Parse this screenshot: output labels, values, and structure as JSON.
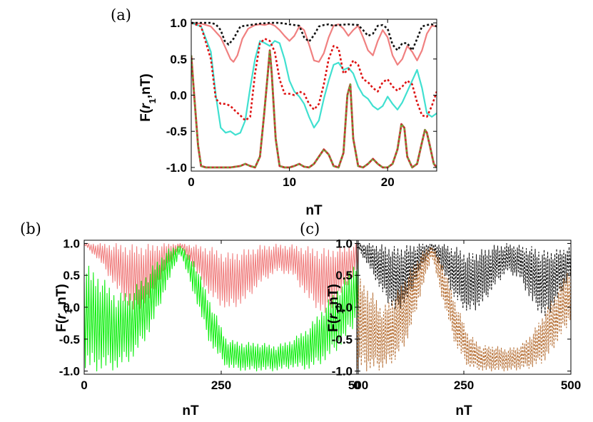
{
  "chart_data": [
    {
      "panel": "(a)",
      "type": "line",
      "xlabel": "nT",
      "ylabel_text": "F(",
      "ylabel_var": "r",
      "ylabel_sub": "1",
      "ylabel_rest": ",nT)",
      "xlim": [
        0,
        25
      ],
      "ylim": [
        -1.05,
        1.05
      ],
      "xticks": [
        0,
        10,
        20
      ],
      "yticks": [
        1.0,
        0.5,
        0.0,
        -0.5,
        -1.0
      ],
      "ytick_labels": [
        "1.0",
        "0.5",
        "0.0",
        "-0.5",
        "-1.0"
      ],
      "xtick_labels": [
        "0",
        "10",
        "20"
      ],
      "series": [
        {
          "color": "#f08080",
          "dash": "",
          "width": 2.2,
          "x": [
            0,
            1,
            2,
            3,
            3.5,
            4,
            4.3,
            4.7,
            5.2,
            5.8,
            6.5,
            7,
            7.5,
            8,
            8.5,
            9,
            9.5,
            10,
            10.5,
            11,
            11.5,
            12,
            12.5,
            13,
            13.5,
            14,
            14.5,
            15,
            15.5,
            16,
            16.5,
            17,
            17.5,
            18,
            18.5,
            19,
            19.5,
            20,
            20.5,
            21,
            21.5,
            22,
            22.5,
            23,
            23.5,
            24,
            24.5,
            25
          ],
          "y": [
            1.0,
            0.99,
            0.95,
            0.8,
            0.65,
            0.5,
            0.46,
            0.55,
            0.78,
            0.92,
            0.97,
            0.98,
            0.97,
            0.99,
            0.96,
            0.9,
            0.82,
            0.75,
            0.82,
            0.95,
            0.9,
            0.7,
            0.48,
            0.46,
            0.58,
            0.8,
            0.96,
            0.98,
            0.92,
            0.82,
            0.9,
            0.96,
            0.8,
            0.62,
            0.55,
            0.75,
            0.9,
            0.8,
            0.55,
            0.42,
            0.5,
            0.68,
            0.6,
            0.48,
            0.62,
            0.85,
            0.96,
            0.95
          ]
        },
        {
          "color": "#40e0d0",
          "dash": "",
          "width": 2.2,
          "x": [
            0,
            1,
            2,
            2.5,
            3,
            3.5,
            4,
            4.5,
            5,
            5.5,
            6,
            6.5,
            7,
            7.5,
            8,
            8.5,
            9,
            9.5,
            10,
            10.5,
            11,
            11.5,
            12,
            12.5,
            13,
            13.5,
            14,
            14.5,
            15,
            15.5,
            16,
            16.5,
            17,
            17.5,
            18,
            18.5,
            19,
            19.5,
            20,
            20.5,
            21,
            21.5,
            22,
            22.5,
            23,
            23.5,
            24,
            24.5,
            25
          ],
          "y": [
            1.0,
            0.95,
            0.6,
            0.0,
            -0.45,
            -0.52,
            -0.5,
            -0.55,
            -0.52,
            -0.35,
            0.1,
            0.5,
            0.75,
            0.72,
            0.68,
            0.75,
            0.72,
            0.5,
            0.2,
            0.05,
            -0.02,
            -0.12,
            -0.3,
            -0.45,
            -0.35,
            -0.05,
            0.2,
            0.42,
            0.45,
            0.35,
            0.38,
            0.3,
            0.12,
            0.0,
            -0.05,
            -0.15,
            -0.2,
            -0.15,
            -0.02,
            -0.12,
            -0.2,
            -0.1,
            0.05,
            0.2,
            0.35,
            0.1,
            -0.25,
            -0.3,
            -0.25
          ]
        },
        {
          "color": "#dd1111",
          "dash": "3,3",
          "width": 2.6,
          "x": [
            0,
            1,
            2,
            2.5,
            3,
            3.5,
            4,
            4.5,
            5,
            5.5,
            6,
            6.5,
            7,
            7.5,
            8,
            8.5,
            9,
            9.5,
            10,
            10.5,
            11,
            11.5,
            12,
            12.5,
            13,
            13.5,
            14,
            14.5,
            15,
            15.5,
            16,
            16.5,
            17,
            17.5,
            18,
            18.5,
            19,
            19.5,
            20,
            20.5,
            21,
            21.5,
            22,
            22.5,
            23,
            23.5,
            24,
            24.5,
            25
          ],
          "y": [
            1.0,
            0.95,
            0.5,
            -0.05,
            -0.12,
            -0.12,
            -0.15,
            -0.22,
            -0.28,
            -0.35,
            -0.3,
            0.3,
            0.72,
            0.78,
            0.75,
            0.6,
            0.22,
            0.02,
            0.02,
            0.0,
            0.05,
            0.02,
            -0.12,
            -0.2,
            -0.12,
            0.15,
            0.5,
            0.68,
            0.65,
            0.3,
            0.35,
            0.48,
            0.42,
            0.22,
            0.18,
            0.1,
            0.05,
            0.18,
            0.22,
            0.12,
            0.06,
            0.12,
            0.2,
            0.15,
            -0.1,
            -0.28,
            -0.3,
            -0.15,
            0.05
          ]
        },
        {
          "color": "#111111",
          "dash": "3,3",
          "width": 2.6,
          "x": [
            0,
            1,
            2,
            2.5,
            3,
            3.4,
            3.8,
            4.3,
            5,
            6,
            7,
            8,
            9,
            10,
            11,
            11.5,
            12,
            12.5,
            13,
            13.5,
            14,
            14.5,
            15,
            16,
            17,
            17.5,
            18,
            18.5,
            19,
            19.5,
            20,
            20.5,
            21,
            21.5,
            22,
            22.5,
            23,
            23.5,
            24,
            24.5,
            25
          ],
          "y": [
            1.0,
            1.0,
            1.0,
            0.98,
            0.9,
            0.75,
            0.7,
            0.78,
            0.95,
            0.97,
            0.99,
            1.0,
            1.0,
            0.98,
            0.96,
            0.8,
            0.74,
            0.83,
            0.95,
            0.97,
            0.98,
            0.96,
            0.97,
            0.98,
            0.97,
            0.9,
            0.82,
            0.85,
            0.96,
            0.97,
            0.92,
            0.7,
            0.62,
            0.72,
            0.72,
            0.62,
            0.78,
            0.95,
            0.97,
            0.98,
            0.95
          ]
        },
        {
          "color": "#c63030",
          "dash": "",
          "width": 2.8,
          "x": [
            0,
            0.3,
            0.7,
            1,
            1.5,
            2,
            3,
            4,
            5,
            5.5,
            6,
            6.5,
            7,
            7.4,
            7.8,
            8,
            8.2,
            8.6,
            9,
            9.5,
            10,
            10.5,
            11,
            11.5,
            12,
            12.5,
            13,
            13.5,
            14,
            14.5,
            15,
            15.5,
            15.9,
            16.2,
            16.5,
            17,
            17.5,
            18,
            18.5,
            19,
            19.5,
            20,
            20.5,
            21,
            21.4,
            21.7,
            22,
            22.5,
            23,
            23.5,
            23.8,
            24,
            24.3,
            24.7,
            25
          ],
          "y": [
            0.55,
            0.0,
            -0.7,
            -0.98,
            -1.0,
            -1.0,
            -1.0,
            -1.0,
            -0.98,
            -0.95,
            -0.98,
            -1.0,
            -0.85,
            -0.3,
            0.3,
            0.62,
            0.3,
            -0.6,
            -0.98,
            -1.0,
            -1.0,
            -0.98,
            -0.95,
            -0.99,
            -1.0,
            -0.95,
            -0.85,
            -0.75,
            -0.82,
            -0.98,
            -1.0,
            -0.8,
            0.0,
            0.15,
            -0.6,
            -0.98,
            -1.0,
            -0.95,
            -0.88,
            -0.95,
            -1.0,
            -1.0,
            -0.95,
            -0.75,
            -0.4,
            -0.45,
            -0.85,
            -1.0,
            -0.95,
            -0.65,
            -0.48,
            -0.52,
            -0.7,
            -0.95,
            -1.0
          ]
        },
        {
          "color": "#6ea83a",
          "dash": "3,3",
          "width": 2.4,
          "x": [
            0,
            0.3,
            0.7,
            1,
            1.5,
            2,
            3,
            4,
            5,
            5.5,
            6,
            6.5,
            7,
            7.4,
            7.8,
            8,
            8.2,
            8.6,
            9,
            9.5,
            10,
            10.5,
            11,
            11.5,
            12,
            12.5,
            13,
            13.5,
            14,
            14.5,
            15,
            15.5,
            15.9,
            16.2,
            16.5,
            17,
            17.5,
            18,
            18.5,
            19,
            19.5,
            20,
            20.5,
            21,
            21.4,
            21.7,
            22,
            22.5,
            23,
            23.5,
            23.8,
            24,
            24.3,
            24.7,
            25
          ],
          "y": [
            0.55,
            0.0,
            -0.7,
            -0.98,
            -1.0,
            -1.0,
            -1.0,
            -1.0,
            -0.98,
            -0.95,
            -0.98,
            -1.0,
            -0.85,
            -0.3,
            0.3,
            0.62,
            0.3,
            -0.6,
            -0.98,
            -1.0,
            -1.0,
            -0.98,
            -0.95,
            -0.99,
            -1.0,
            -0.95,
            -0.85,
            -0.75,
            -0.82,
            -0.98,
            -1.0,
            -0.8,
            0.0,
            0.15,
            -0.6,
            -0.98,
            -1.0,
            -0.95,
            -0.88,
            -0.95,
            -1.0,
            -1.0,
            -0.95,
            -0.75,
            -0.4,
            -0.45,
            -0.85,
            -1.0,
            -0.95,
            -0.65,
            -0.48,
            -0.52,
            -0.7,
            -0.95,
            -1.0
          ]
        }
      ]
    },
    {
      "panel": "(b)",
      "type": "line",
      "xlabel": "nT",
      "ylabel_text": "F(",
      "ylabel_var": "r",
      "ylabel_sub": "1",
      "ylabel_rest": ",nT)",
      "xlim": [
        0,
        500
      ],
      "ylim": [
        -1.05,
        1.05
      ],
      "xticks": [
        0,
        250,
        500
      ],
      "yticks": [
        1.0,
        0.5,
        0.0,
        -0.5,
        -1.0
      ],
      "ytick_labels": [
        "1.0",
        "0.5",
        "0.0",
        "-0.5",
        "-1.0"
      ],
      "xtick_labels": [
        "0",
        "250",
        "500"
      ],
      "series": [
        {
          "color": "#f08080",
          "dash": "",
          "width": 1.1,
          "oscillating": true,
          "x": [
            0,
            30,
            60,
            90,
            120,
            150,
            175,
            200,
            230,
            260,
            290,
            320,
            350,
            380,
            410,
            440,
            470,
            500
          ],
          "upper": [
            1.0,
            1.0,
            1.0,
            0.98,
            0.99,
            1.0,
            1.0,
            0.98,
            0.95,
            0.85,
            0.9,
            0.97,
            0.99,
            0.98,
            0.95,
            0.92,
            0.95,
            1.0
          ],
          "lower": [
            0.98,
            0.7,
            0.25,
            -0.1,
            0.1,
            0.6,
            0.95,
            0.6,
            0.15,
            -0.05,
            0.05,
            0.35,
            0.55,
            0.5,
            0.1,
            -0.15,
            0.2,
            0.6
          ]
        },
        {
          "color": "#11ee11",
          "dash": "",
          "width": 1.1,
          "oscillating": true,
          "x": [
            0,
            30,
            60,
            90,
            120,
            150,
            175,
            200,
            230,
            260,
            290,
            320,
            350,
            380,
            410,
            440,
            470,
            500
          ],
          "upper": [
            0.7,
            0.5,
            0.2,
            0.3,
            0.6,
            0.9,
            0.98,
            0.75,
            0.1,
            -0.5,
            -0.55,
            -0.55,
            -0.6,
            -0.5,
            -0.3,
            0.05,
            0.4,
            0.8
          ],
          "lower": [
            -1.0,
            -1.0,
            -0.98,
            -0.8,
            -0.4,
            0.3,
            0.85,
            0.2,
            -0.6,
            -0.95,
            -1.0,
            -1.0,
            -1.0,
            -0.95,
            -0.98,
            -0.85,
            -0.6,
            -0.2
          ]
        }
      ]
    },
    {
      "panel": "(c)",
      "type": "line",
      "xlabel": "nT",
      "ylabel_text": "F(",
      "ylabel_var": "r",
      "ylabel_sub": "1",
      "ylabel_rest": ",nT)",
      "xlim": [
        0,
        500
      ],
      "ylim": [
        -1.05,
        1.05
      ],
      "xticks": [
        0,
        250,
        500
      ],
      "yticks": [
        1.0,
        0.5,
        0.0,
        -0.5,
        -1.0
      ],
      "ytick_labels": [
        "1.0",
        "0.5",
        "0.0",
        "-0.5",
        "-1.0"
      ],
      "xtick_labels": [
        "0",
        "250",
        "500"
      ],
      "series": [
        {
          "color": "#111111",
          "dash": "3,2",
          "width": 1.1,
          "oscillating": true,
          "x": [
            0,
            30,
            60,
            90,
            120,
            150,
            175,
            200,
            230,
            260,
            290,
            320,
            350,
            380,
            410,
            440,
            470,
            500
          ],
          "upper": [
            1.0,
            1.0,
            0.98,
            0.95,
            0.98,
            1.0,
            1.0,
            0.99,
            0.95,
            0.85,
            0.9,
            0.97,
            1.0,
            0.98,
            0.95,
            0.9,
            0.92,
            0.95
          ],
          "lower": [
            0.95,
            0.6,
            0.2,
            -0.1,
            0.1,
            0.6,
            0.9,
            0.55,
            0.1,
            -0.1,
            0.0,
            0.3,
            0.55,
            0.45,
            0.05,
            -0.2,
            0.1,
            0.5
          ]
        },
        {
          "color": "#b8733a",
          "dash": "3,2",
          "width": 1.1,
          "oscillating": true,
          "x": [
            0,
            30,
            60,
            90,
            120,
            150,
            175,
            200,
            230,
            260,
            290,
            320,
            350,
            380,
            410,
            440,
            470,
            500
          ],
          "upper": [
            0.5,
            0.3,
            0.0,
            0.2,
            0.55,
            0.85,
            0.98,
            0.7,
            0.1,
            -0.4,
            -0.6,
            -0.6,
            -0.65,
            -0.6,
            -0.4,
            -0.05,
            0.3,
            0.7
          ],
          "lower": [
            -1.0,
            -1.0,
            -0.98,
            -0.85,
            -0.5,
            0.2,
            0.8,
            0.1,
            -0.6,
            -0.95,
            -1.0,
            -1.0,
            -1.0,
            -0.98,
            -0.95,
            -0.85,
            -0.55,
            -0.2
          ]
        }
      ]
    }
  ]
}
